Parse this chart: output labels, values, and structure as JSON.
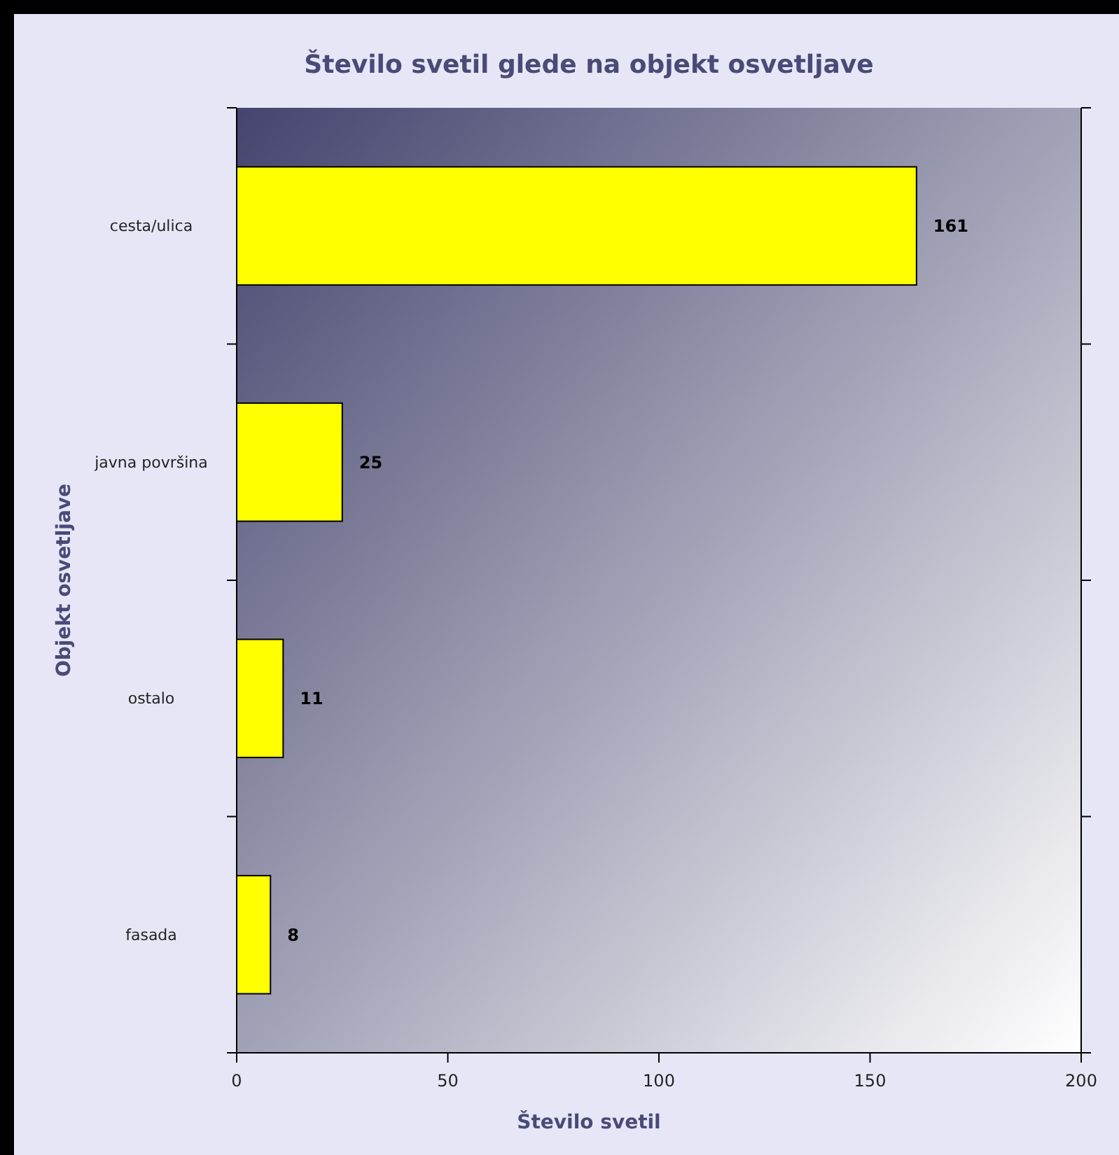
{
  "chart_data": {
    "type": "bar",
    "orientation": "horizontal",
    "title": "Število svetil glede na objekt osvetljave",
    "xlabel": "Število svetil",
    "ylabel": "Objekt osvetljave",
    "categories": [
      "cesta/ulica",
      "javna površina",
      "ostalo",
      "fasada"
    ],
    "values": [
      161,
      25,
      11,
      8
    ],
    "color": "#ffff00",
    "xlim": [
      0,
      200
    ],
    "xticks": [
      0,
      50,
      100,
      150,
      200
    ],
    "data_labels": true,
    "grid": false
  }
}
